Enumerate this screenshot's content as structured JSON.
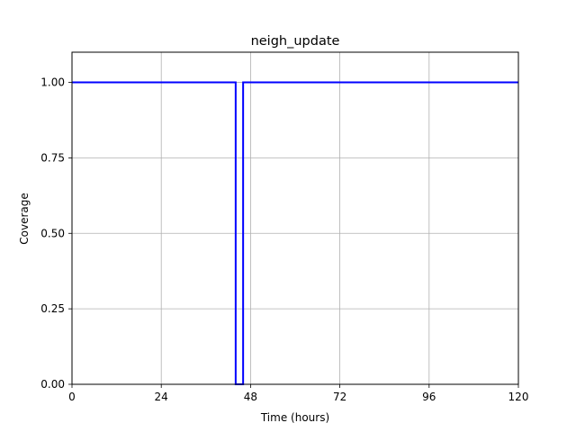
{
  "chart_data": {
    "type": "line",
    "title": "neigh_update",
    "xlabel": "Time (hours)",
    "ylabel": "Coverage",
    "xlim": [
      0,
      120
    ],
    "ylim": [
      0,
      1.1
    ],
    "x_ticks": [
      0,
      24,
      48,
      72,
      96,
      120
    ],
    "x_tick_labels": [
      "0",
      "24",
      "48",
      "72",
      "96",
      "120"
    ],
    "y_ticks": [
      0,
      0.25,
      0.5,
      0.75,
      1.0
    ],
    "y_tick_labels": [
      "0.00",
      "0.25",
      "0.50",
      "0.75",
      "1.00"
    ],
    "grid": true,
    "series": [
      {
        "color": "#0000ff",
        "x": [
          0,
          44,
          44,
          46,
          46,
          120
        ],
        "y": [
          1.0,
          1.0,
          0.0,
          0.0,
          1.0,
          1.0
        ]
      }
    ]
  }
}
